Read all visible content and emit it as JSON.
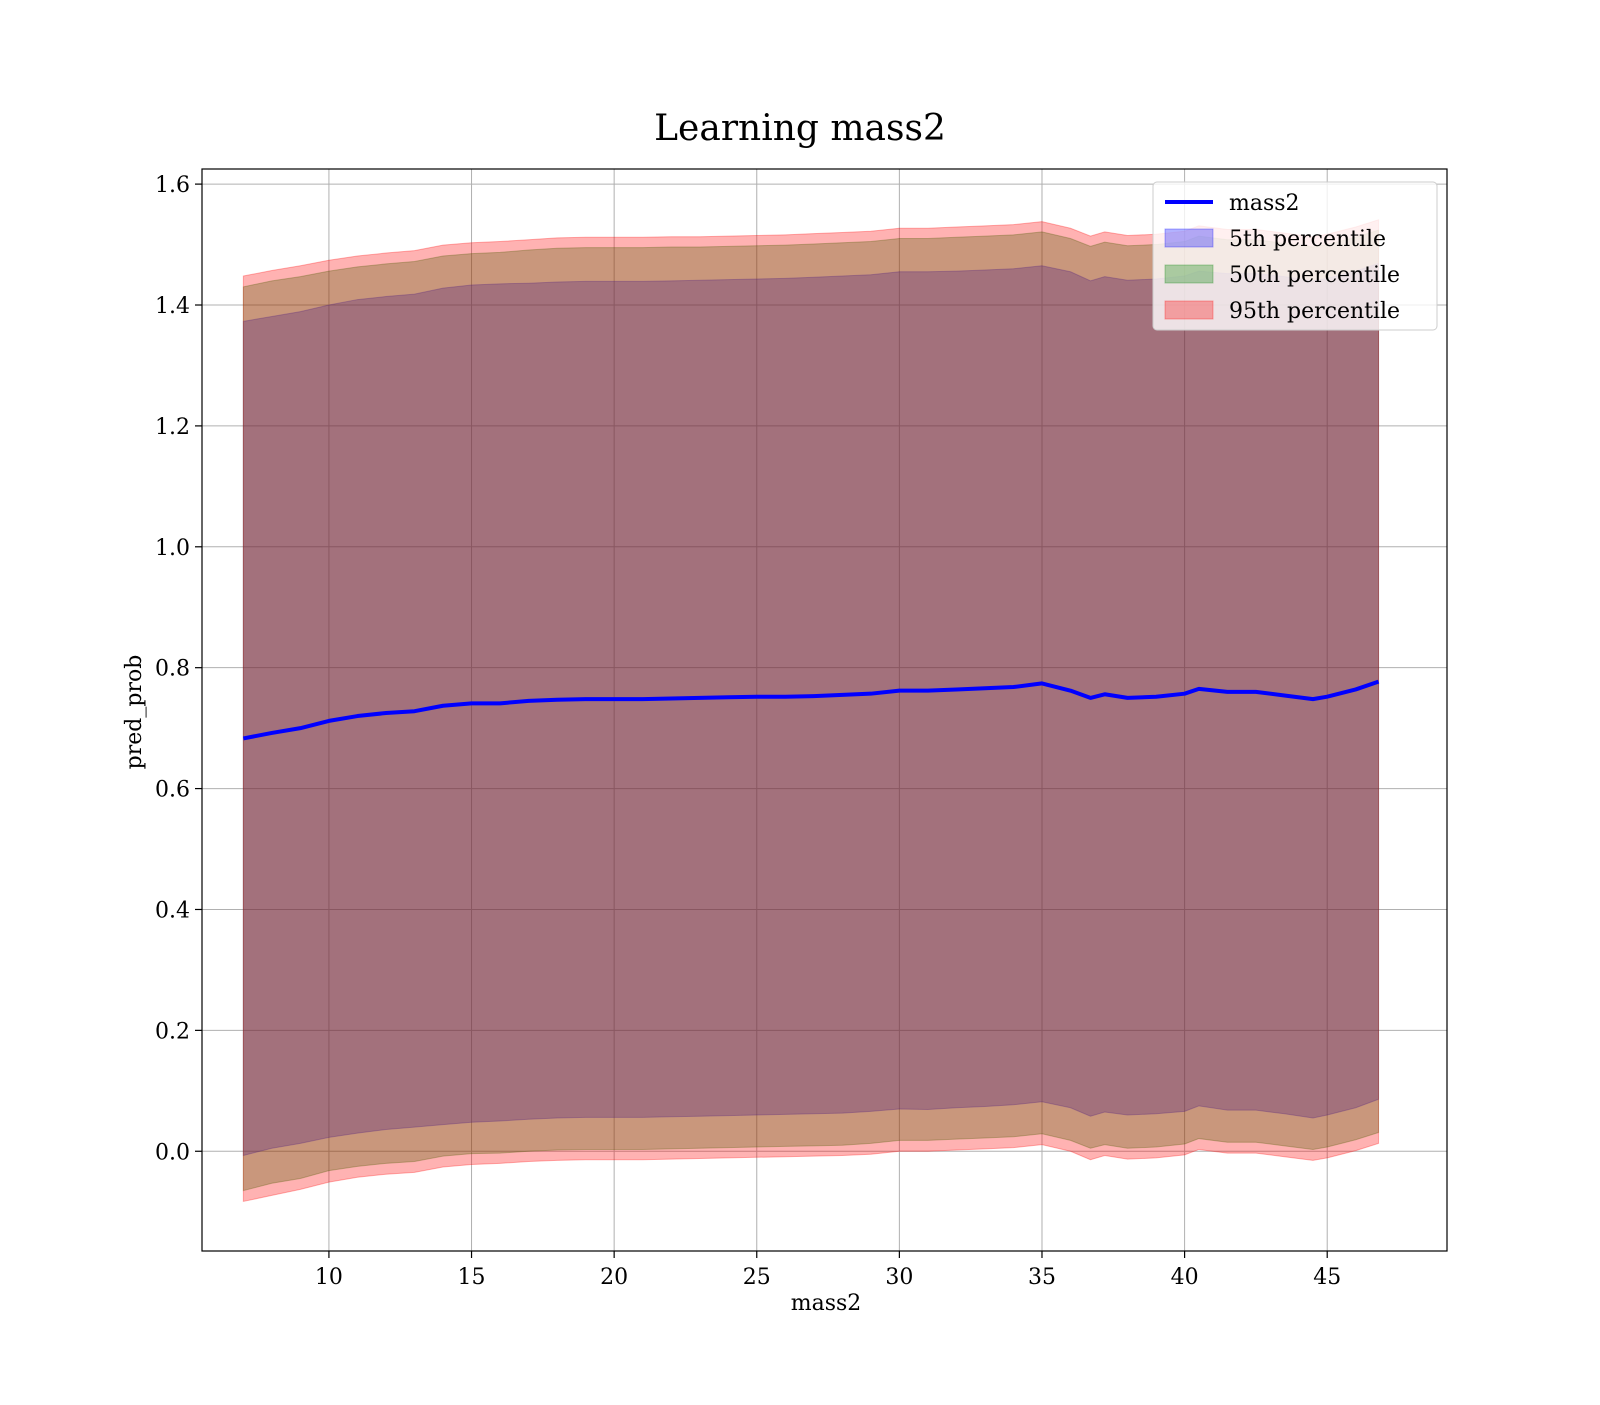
{
  "chart_data": {
    "type": "area",
    "title": "Learning mass2",
    "xlabel": "mass2",
    "ylabel": "pred_prob",
    "xlim": [
      5.55,
      49.2
    ],
    "ylim": [
      -0.165,
      1.625
    ],
    "xticks": [
      10,
      15,
      20,
      25,
      30,
      35,
      40,
      45
    ],
    "yticks": [
      0.0,
      0.2,
      0.4,
      0.6,
      0.8,
      1.0,
      1.2,
      1.4,
      1.6
    ],
    "ytick_labels": [
      "0.0",
      "0.2",
      "0.4",
      "0.6",
      "0.8",
      "1.0",
      "1.2",
      "1.4",
      "1.6"
    ],
    "grid": true,
    "legend_position": "top-right",
    "x": [
      7.0,
      8.0,
      9.0,
      10.0,
      11.0,
      12.0,
      13.0,
      14.0,
      15.0,
      16.0,
      17.0,
      18.0,
      19.0,
      20.0,
      21.0,
      22.0,
      23.0,
      24.0,
      25.0,
      26.0,
      27.0,
      28.0,
      29.0,
      30.0,
      31.0,
      32.0,
      33.0,
      34.0,
      35.0,
      36.0,
      36.7,
      37.2,
      38.0,
      39.0,
      40.0,
      40.5,
      41.5,
      42.5,
      43.5,
      44.5,
      45.0,
      46.0,
      46.8
    ],
    "series": [
      {
        "name": "mass2",
        "kind": "line",
        "color": "#0000ff",
        "values": [
          0.683,
          0.692,
          0.7,
          0.712,
          0.72,
          0.725,
          0.728,
          0.737,
          0.741,
          0.741,
          0.745,
          0.747,
          0.748,
          0.748,
          0.748,
          0.749,
          0.75,
          0.751,
          0.752,
          0.752,
          0.753,
          0.755,
          0.757,
          0.762,
          0.762,
          0.764,
          0.766,
          0.768,
          0.774,
          0.762,
          0.75,
          0.756,
          0.75,
          0.752,
          0.757,
          0.765,
          0.76,
          0.76,
          0.754,
          0.748,
          0.752,
          0.764,
          0.777
        ]
      },
      {
        "name": "5th percentile",
        "kind": "band",
        "color": "#0000ff",
        "lower": [
          -0.007,
          0.005,
          0.013,
          0.023,
          0.03,
          0.036,
          0.04,
          0.044,
          0.048,
          0.05,
          0.053,
          0.055,
          0.056,
          0.056,
          0.056,
          0.057,
          0.058,
          0.059,
          0.06,
          0.061,
          0.062,
          0.063,
          0.066,
          0.07,
          0.069,
          0.072,
          0.074,
          0.077,
          0.082,
          0.072,
          0.058,
          0.065,
          0.06,
          0.062,
          0.066,
          0.075,
          0.068,
          0.068,
          0.062,
          0.055,
          0.06,
          0.072,
          0.086
        ],
        "upper": [
          1.373,
          1.381,
          1.389,
          1.4,
          1.409,
          1.414,
          1.418,
          1.428,
          1.433,
          1.435,
          1.436,
          1.438,
          1.439,
          1.439,
          1.439,
          1.44,
          1.441,
          1.442,
          1.443,
          1.444,
          1.446,
          1.448,
          1.45,
          1.455,
          1.455,
          1.456,
          1.458,
          1.46,
          1.465,
          1.455,
          1.44,
          1.447,
          1.441,
          1.443,
          1.448,
          1.456,
          1.452,
          1.452,
          1.447,
          1.44,
          1.444,
          1.456,
          1.469
        ]
      },
      {
        "name": "50th percentile",
        "kind": "band",
        "color": "#008000",
        "lower": [
          -0.065,
          -0.053,
          -0.045,
          -0.032,
          -0.025,
          -0.02,
          -0.017,
          -0.008,
          -0.004,
          -0.003,
          0.0,
          0.002,
          0.003,
          0.003,
          0.003,
          0.004,
          0.005,
          0.006,
          0.007,
          0.008,
          0.009,
          0.01,
          0.013,
          0.018,
          0.018,
          0.02,
          0.022,
          0.024,
          0.029,
          0.018,
          0.005,
          0.011,
          0.005,
          0.007,
          0.012,
          0.021,
          0.015,
          0.015,
          0.009,
          0.003,
          0.007,
          0.019,
          0.031
        ],
        "upper": [
          1.43,
          1.44,
          1.447,
          1.456,
          1.463,
          1.468,
          1.472,
          1.481,
          1.485,
          1.487,
          1.491,
          1.494,
          1.495,
          1.495,
          1.495,
          1.496,
          1.496,
          1.497,
          1.498,
          1.499,
          1.501,
          1.503,
          1.505,
          1.51,
          1.51,
          1.512,
          1.514,
          1.516,
          1.521,
          1.51,
          1.497,
          1.504,
          1.498,
          1.5,
          1.505,
          1.514,
          1.508,
          1.508,
          1.502,
          1.496,
          1.5,
          1.512,
          1.524
        ]
      },
      {
        "name": "95th percentile",
        "kind": "band",
        "color": "#ff0000",
        "lower": [
          -0.083,
          -0.073,
          -0.063,
          -0.051,
          -0.043,
          -0.038,
          -0.035,
          -0.026,
          -0.022,
          -0.02,
          -0.017,
          -0.015,
          -0.014,
          -0.014,
          -0.014,
          -0.013,
          -0.012,
          -0.011,
          -0.01,
          -0.009,
          -0.008,
          -0.007,
          -0.005,
          0.0,
          0.0,
          0.002,
          0.004,
          0.006,
          0.011,
          0.0,
          -0.014,
          -0.007,
          -0.013,
          -0.011,
          -0.006,
          0.003,
          -0.003,
          -0.003,
          -0.009,
          -0.015,
          -0.011,
          0.001,
          0.013
        ],
        "upper": [
          1.448,
          1.457,
          1.465,
          1.474,
          1.481,
          1.486,
          1.49,
          1.499,
          1.503,
          1.505,
          1.508,
          1.511,
          1.512,
          1.512,
          1.512,
          1.513,
          1.513,
          1.514,
          1.515,
          1.516,
          1.518,
          1.52,
          1.522,
          1.527,
          1.527,
          1.529,
          1.531,
          1.533,
          1.538,
          1.527,
          1.514,
          1.521,
          1.515,
          1.517,
          1.522,
          1.531,
          1.525,
          1.525,
          1.519,
          1.513,
          1.517,
          1.529,
          1.541
        ]
      }
    ]
  }
}
